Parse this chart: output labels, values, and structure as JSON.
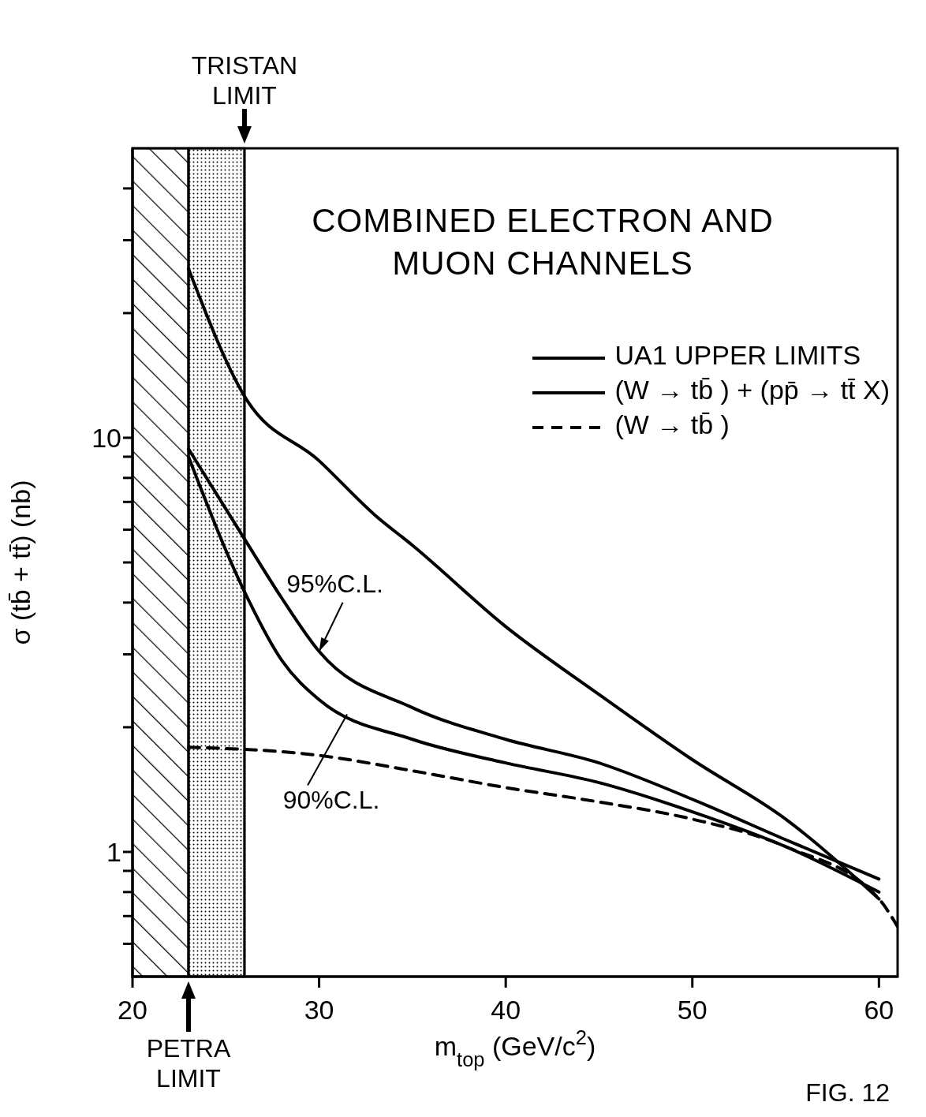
{
  "chart_data": {
    "type": "line",
    "title": "COMBINED ELECTRON AND MUON CHANNELS",
    "xlabel": "m$_{top}$ (GeV/c$^{2}$)",
    "ylabel": "σ (tb̄ + tt̄)  (nb)",
    "log": "y",
    "xlim": [
      20,
      61
    ],
    "ylim": [
      0.5,
      50
    ],
    "xticks": [
      20,
      30,
      40,
      50,
      60
    ],
    "yticks": [
      {
        "value": 0.6,
        "label": null
      },
      {
        "value": 0.7,
        "label": null
      },
      {
        "value": 0.8,
        "label": null
      },
      {
        "value": 0.9,
        "label": null
      },
      1,
      {
        "value": 2,
        "label": null
      },
      {
        "value": 3,
        "label": null
      },
      {
        "value": 4,
        "label": null
      },
      {
        "value": 5,
        "label": null
      },
      {
        "value": 6,
        "label": null
      },
      {
        "value": 7,
        "label": null
      },
      {
        "value": 8,
        "label": null
      },
      {
        "value": 9,
        "label": null
      },
      10,
      {
        "value": 20,
        "label": null
      },
      {
        "value": 30,
        "label": null
      },
      {
        "value": 40,
        "label": null
      }
    ],
    "legend": "top right",
    "grid": false,
    "series": [
      {
        "name": "UA1 UPPER LIMITS",
        "color": "#000000",
        "line_style": "solid",
        "x": [
          23,
          26,
          28,
          30,
          35,
          40,
          45,
          50,
          55,
          60
        ],
        "values": [
          9.4,
          5.7,
          4.1,
          3.05,
          2.23,
          1.87,
          1.64,
          1.34,
          1.07,
          0.86
        ]
      },
      {
        "color": "#000000",
        "line_style": "solid",
        "x": [
          23,
          26,
          28,
          30,
          35,
          40,
          45,
          50,
          55,
          60
        ],
        "values": [
          9.0,
          4.25,
          2.9,
          2.33,
          1.87,
          1.64,
          1.47,
          1.25,
          1.03,
          0.8
        ]
      },
      {
        "name": "(W → tb̄ ) + (pp̄ → tt̄ X)",
        "color": "#000000",
        "line_style": "solid",
        "x": [
          23,
          26,
          30,
          33,
          35,
          40,
          45,
          50,
          55,
          60
        ],
        "values": [
          25.6,
          12.6,
          8.8,
          6.5,
          5.5,
          3.5,
          2.4,
          1.67,
          1.2,
          0.77
        ]
      },
      {
        "name": "(W → tb̄ )",
        "color": "#000000",
        "line_style": "dashed",
        "x": [
          23,
          30,
          35,
          40,
          45,
          50,
          55,
          60,
          61
        ],
        "values": [
          1.79,
          1.71,
          1.57,
          1.43,
          1.32,
          1.2,
          1.03,
          0.77,
          0.66
        ]
      }
    ],
    "bands": [
      {
        "axis": "x",
        "from": 20,
        "to": 23,
        "color": "#000000"
      },
      {
        "axis": "x",
        "from": 23,
        "to": 26,
        "color": "#000000"
      }
    ],
    "ref_lines": [
      {
        "axis": "x",
        "value": 23,
        "label": "PETRA LIMIT"
      },
      {
        "axis": "x",
        "value": 26,
        "label": "TRISTAN LIMIT"
      }
    ],
    "annotations": [
      {
        "text": "95%C.L.",
        "x": 30,
        "y": 3.05
      },
      {
        "text": "90%C.L.",
        "x": 31.5,
        "y": 2.15
      },
      "FIG. 12"
    ]
  }
}
